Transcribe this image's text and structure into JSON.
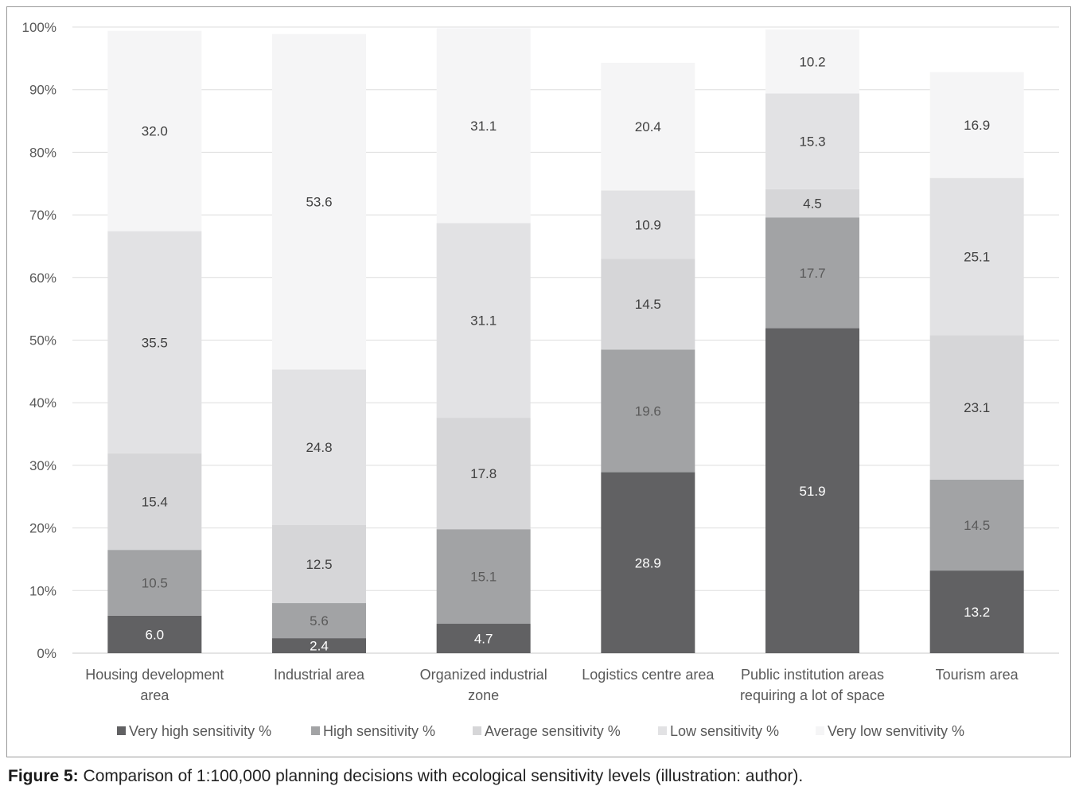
{
  "caption": {
    "label": "Figure 5:",
    "text": " Comparison of 1:100,000 planning decisions with ecological sensitivity levels (illustration: author)."
  },
  "chart_data": {
    "type": "bar",
    "stacked": true,
    "ylim": [
      0,
      100
    ],
    "y_ticks": [
      "0%",
      "10%",
      "20%",
      "30%",
      "40%",
      "50%",
      "60%",
      "70%",
      "80%",
      "90%",
      "100%"
    ],
    "grid": true,
    "legend_position": "bottom",
    "categories": [
      [
        "Housing development",
        "area"
      ],
      [
        "Industrial area"
      ],
      [
        "Organized industrial",
        "zone"
      ],
      [
        "Logistics centre area"
      ],
      [
        "Public institution areas",
        "requiring a lot of space"
      ],
      [
        "Tourism area"
      ]
    ],
    "series": [
      {
        "name": "Very high sensitivity %",
        "color": "#616163",
        "label_color": "#ffffff",
        "values": [
          6.0,
          2.4,
          4.7,
          28.9,
          51.9,
          13.2
        ]
      },
      {
        "name": "High sensitivity %",
        "color": "#a2a3a5",
        "label_color": "#5a5a5a",
        "values": [
          10.5,
          5.6,
          15.1,
          19.6,
          17.7,
          14.5
        ]
      },
      {
        "name": "Average sensitivity %",
        "color": "#d6d6d8",
        "label_color": "#404040",
        "values": [
          15.4,
          12.5,
          17.8,
          14.5,
          4.5,
          23.1
        ]
      },
      {
        "name": "Low sensitivity %",
        "color": "#e2e2e4",
        "label_color": "#404040",
        "values": [
          35.5,
          24.8,
          31.1,
          10.9,
          15.3,
          25.1
        ]
      },
      {
        "name": "Very low senvitivity %",
        "color": "#f5f5f6",
        "label_color": "#404040",
        "values": [
          32.0,
          53.6,
          31.1,
          20.4,
          10.2,
          16.9
        ]
      }
    ]
  }
}
